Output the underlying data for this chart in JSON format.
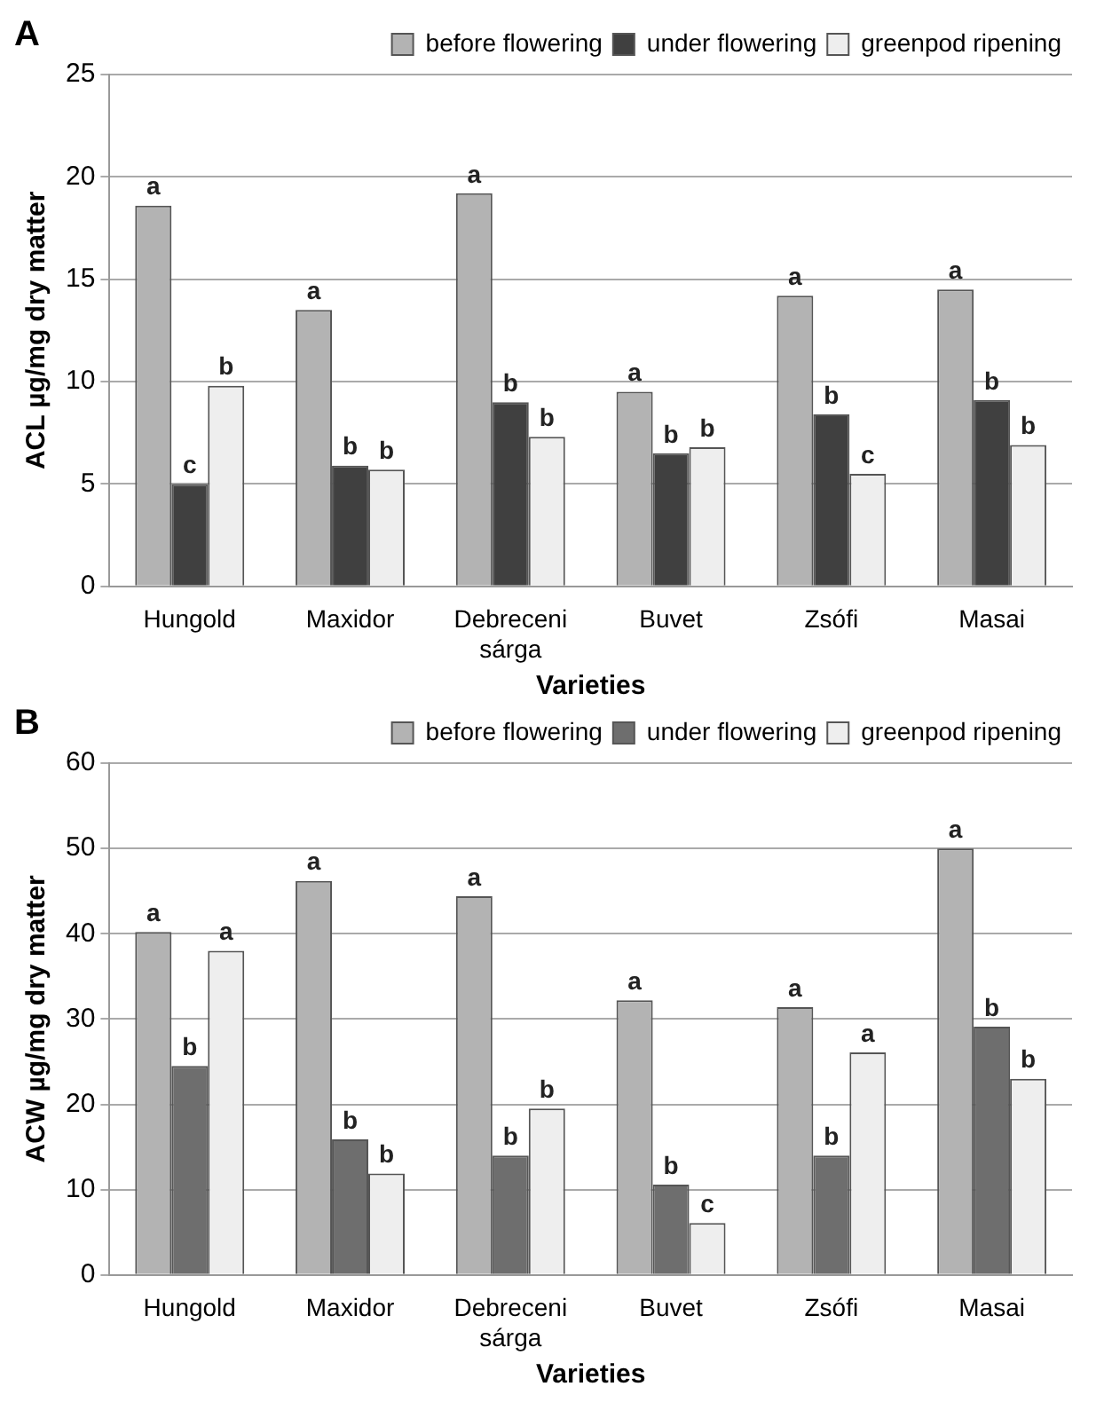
{
  "chart_data": [
    {
      "type": "bar",
      "title": "A",
      "xlabel": "Varieties",
      "ylabel": "ACL µg/mg dry matter",
      "categories": [
        "Hungold",
        "Maxidor",
        "Debreceni sárga",
        "Buvet",
        "Zsófi",
        "Masai"
      ],
      "ylim": [
        0,
        25
      ],
      "yticks": [
        0,
        5,
        10,
        15,
        20,
        25
      ],
      "grid": "y",
      "legend": "top right",
      "series": [
        {
          "name": "before flowering",
          "color": "#b3b3b3",
          "values": [
            18.6,
            13.5,
            19.2,
            9.5,
            14.2,
            14.5
          ],
          "value_labels": [
            "a",
            "a",
            "a",
            "a",
            "a",
            "a"
          ]
        },
        {
          "name": "under flowering",
          "color": "#404040",
          "values": [
            5.0,
            5.9,
            9.0,
            6.5,
            8.4,
            9.1
          ],
          "value_labels": [
            "c",
            "b",
            "b",
            "b",
            "b",
            "b"
          ]
        },
        {
          "name": "greenpod ripening",
          "color": "#eeeeee",
          "values": [
            9.8,
            5.7,
            7.3,
            6.8,
            5.5,
            6.9
          ],
          "value_labels": [
            "b",
            "b",
            "b",
            "b",
            "c",
            "b"
          ]
        }
      ]
    },
    {
      "type": "bar",
      "title": "B",
      "xlabel": "Varieties",
      "ylabel": "ACW µg/mg dry matter",
      "categories": [
        "Hungold",
        "Maxidor",
        "Debreceni sárga",
        "Buvet",
        "Zsófi",
        "Masai"
      ],
      "ylim": [
        0,
        60
      ],
      "yticks": [
        0,
        10,
        20,
        30,
        40,
        50,
        60
      ],
      "grid": "y",
      "legend": "top right",
      "series": [
        {
          "name": "before flowering",
          "color": "#b3b3b3",
          "values": [
            40.2,
            46.2,
            44.4,
            32.2,
            31.4,
            50
          ],
          "value_labels": [
            "a",
            "a",
            "a",
            "a",
            "a",
            "a"
          ]
        },
        {
          "name": "under flowering",
          "color": "#6e6e6e",
          "values": [
            24.5,
            15.9,
            14,
            10.6,
            14,
            29.1
          ],
          "value_labels": [
            "b",
            "b",
            "b",
            "b",
            "b",
            "b"
          ]
        },
        {
          "name": "greenpod ripening",
          "color": "#eeeeee",
          "values": [
            38,
            11.9,
            19.5,
            6.1,
            26.1,
            23
          ],
          "value_labels": [
            "a",
            "b",
            "b",
            "c",
            "a",
            "b"
          ]
        }
      ]
    }
  ]
}
